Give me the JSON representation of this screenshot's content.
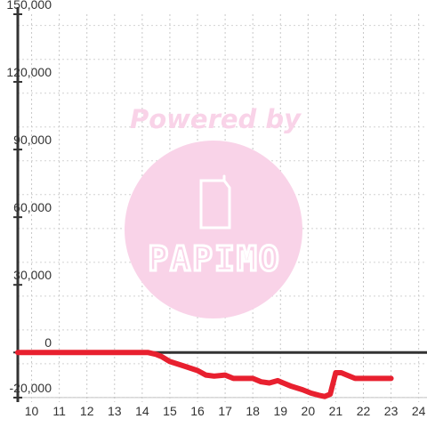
{
  "watermark": {
    "line1": "Powered by",
    "brand": "PAPIMO",
    "color": "#f9d3e8",
    "icon": "phone-icon"
  },
  "chart_data": {
    "type": "line",
    "title": "",
    "xlabel": "",
    "ylabel": "",
    "xlim": [
      9.5,
      24.3
    ],
    "ylim": [
      -22000,
      150000
    ],
    "x_ticks": [
      10,
      11,
      12,
      13,
      14,
      15,
      16,
      17,
      18,
      19,
      20,
      21,
      22,
      23,
      24
    ],
    "x_tick_labels": [
      "10",
      "11",
      "12",
      "13",
      "14",
      "15",
      "16",
      "17",
      "18",
      "19",
      "20",
      "21",
      "22",
      "23",
      "24"
    ],
    "y_ticks": [
      -20000,
      0,
      30000,
      60000,
      90000,
      120000,
      150000
    ],
    "y_tick_labels": [
      "-20,000",
      "0",
      "30,000",
      "60,000",
      "90,000",
      "120,000",
      "150,000"
    ],
    "grid": true,
    "legend": "none",
    "series": [
      {
        "color": "#e8202f",
        "x": [
          9.5,
          10,
          11,
          12,
          13,
          14,
          14.2,
          14.5,
          14.7,
          15,
          15.5,
          16,
          16.3,
          16.6,
          17,
          17.3,
          17.5,
          18,
          18.3,
          18.6,
          18.9,
          19.1,
          19.4,
          19.8,
          20.1,
          20.4,
          20.6,
          20.8,
          21,
          21.2,
          21.4,
          21.7,
          22,
          22.5,
          23
        ],
        "y": [
          0,
          0,
          0,
          0,
          0,
          0,
          0,
          -800,
          -1800,
          -4000,
          -6000,
          -8000,
          -10000,
          -10500,
          -10000,
          -11500,
          -11500,
          -11500,
          -13000,
          -13500,
          -12500,
          -13500,
          -15000,
          -16500,
          -18000,
          -19000,
          -19500,
          -18500,
          -9000,
          -9000,
          -10000,
          -11500,
          -11500,
          -11500,
          -11500
        ]
      }
    ]
  }
}
